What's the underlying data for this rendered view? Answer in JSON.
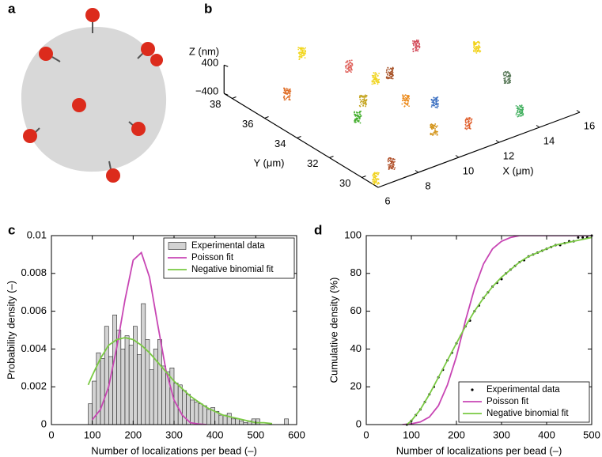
{
  "panel_a": {
    "label": "a"
  },
  "chart_data": [
    {
      "type": "scatter3d",
      "label": "b",
      "xlabel": "X (μm)",
      "ylabel": "Y (μm)",
      "zlabel": "Z (nm)",
      "xlim": [
        6,
        16
      ],
      "ylim": [
        29,
        38.5
      ],
      "zlim": [
        -400,
        400
      ],
      "xticks": [
        6,
        8,
        10,
        12,
        14,
        16
      ],
      "yticks": [
        30,
        32,
        34,
        36,
        38
      ],
      "zticks": [
        400,
        {
          "value": -400,
          "label": "−400"
        }
      ],
      "x": [
        9.7,
        10.5,
        13.6,
        15.4,
        10.7,
        11.4,
        14.8,
        7.2,
        9.2,
        10.5,
        11.3,
        13.5,
        8.2,
        9.9,
        11.3,
        6.9,
        6.2
      ],
      "y": [
        38.3,
        36.4,
        36.1,
        34.6,
        35.0,
        35.0,
        32.0,
        36.1,
        33.9,
        32.9,
        32.1,
        29.6,
        33.0,
        30.4,
        30.0,
        29.3,
        29.4
      ],
      "z": [
        0,
        0,
        0,
        0,
        0,
        0,
        0,
        0,
        0,
        0,
        0,
        0,
        0,
        0,
        0,
        0,
        -300
      ],
      "colors": [
        "#f2d61a",
        "#e0655f",
        "#d4505f",
        "#f2d21a",
        "#f0d420",
        "#a8542a",
        "#5a7a5a",
        "#e0702a",
        "#c4a41e",
        "#ec8c1e",
        "#3f72c2",
        "#43b060",
        "#44ae2e",
        "#d4961e",
        "#e0602e",
        "#b0502a",
        "#f0d21e"
      ]
    },
    {
      "type": "histogram",
      "label": "c",
      "xlabel": "Number of localizations per bead (–)",
      "ylabel": "Probability density (–)",
      "xlim": [
        0,
        600
      ],
      "ylim": [
        0,
        0.01
      ],
      "xticks": [
        0,
        100,
        200,
        300,
        400,
        500,
        600
      ],
      "yticks": [
        0,
        0.002,
        0.004,
        0.006,
        0.008,
        0.01
      ],
      "legend": "upper right",
      "series": [
        {
          "name": "Experimental data",
          "type": "histogram",
          "color": "#d3d3d3",
          "bins": [
            90,
            100,
            110,
            120,
            130,
            140,
            150,
            160,
            170,
            180,
            190,
            200,
            210,
            220,
            230,
            240,
            250,
            260,
            270,
            280,
            290,
            300,
            310,
            320,
            330,
            340,
            350,
            360,
            370,
            380,
            390,
            400,
            410,
            420,
            430,
            440,
            450,
            460,
            470,
            480,
            490,
            500,
            510,
            520,
            530,
            540,
            550,
            560,
            570,
            580
          ],
          "values": [
            0.0011,
            0.0023,
            0.0038,
            0.0035,
            0.0052,
            0.0036,
            0.0058,
            0.005,
            0.004,
            0.0047,
            0.0042,
            0.0052,
            0.0037,
            0.0064,
            0.0045,
            0.0029,
            0.004,
            0.0045,
            0.0031,
            0.0028,
            0.003,
            0.0022,
            0.0021,
            0.0018,
            0.0016,
            0.0013,
            0.0012,
            0.0011,
            0.001,
            0.0008,
            0.0009,
            0.0007,
            0.0005,
            0.0005,
            0.0006,
            0.0003,
            0.0003,
            0.0002,
            0.0001,
            0.0002,
            0.0003,
            0.0003,
            0,
            0,
            0,
            0,
            0,
            0,
            0.0003
          ]
        },
        {
          "name": "Poisson fit",
          "type": "line",
          "color": "#c846b4",
          "x": [
            100,
            120,
            140,
            160,
            180,
            200,
            220,
            240,
            260,
            280,
            300,
            320,
            340,
            360,
            380
          ],
          "values": [
            0.00026,
            0.0008,
            0.002,
            0.0041,
            0.0066,
            0.0087,
            0.0091,
            0.0078,
            0.0053,
            0.0029,
            0.0013,
            0.0005,
            0.0001,
            3e-05,
            0
          ]
        },
        {
          "name": "Negative binomial fit",
          "type": "line",
          "color": "#7ac943",
          "x": [
            90,
            100,
            120,
            140,
            160,
            180,
            200,
            220,
            240,
            260,
            280,
            300,
            320,
            340,
            360,
            380,
            400,
            420,
            440,
            460,
            480,
            500,
            520,
            540
          ],
          "values": [
            0.0021,
            0.0026,
            0.0035,
            0.0042,
            0.0045,
            0.0046,
            0.0045,
            0.0042,
            0.0038,
            0.0033,
            0.0028,
            0.0023,
            0.0019,
            0.0015,
            0.0012,
            0.0009,
            0.0007,
            0.0005,
            0.0004,
            0.0003,
            0.0002,
            0.0001,
            0.0001,
            5e-05
          ]
        }
      ]
    },
    {
      "type": "line",
      "label": "d",
      "xlabel": "Number of localizations per bead (–)",
      "ylabel": "Cumulative density (%)",
      "xlim": [
        0,
        500
      ],
      "ylim": [
        0,
        100
      ],
      "xticks": [
        0,
        100,
        200,
        300,
        400,
        500
      ],
      "yticks": [
        0,
        20,
        40,
        60,
        80,
        100
      ],
      "legend": "lower right",
      "series": [
        {
          "name": "Experimental data",
          "type": "scatter",
          "color": "#000000",
          "x": [
            90,
            100,
            110,
            120,
            130,
            140,
            150,
            160,
            170,
            180,
            190,
            200,
            210,
            220,
            230,
            240,
            250,
            260,
            270,
            280,
            290,
            300,
            310,
            320,
            330,
            340,
            350,
            360,
            370,
            380,
            390,
            400,
            410,
            420,
            430,
            440,
            450,
            460,
            470,
            480,
            490,
            500
          ],
          "values": [
            0,
            2,
            5,
            8,
            12,
            16,
            20,
            25,
            29,
            34,
            38,
            43,
            47,
            52,
            55,
            60,
            63,
            67,
            70,
            73,
            75,
            77,
            80,
            82,
            84,
            86,
            87,
            89,
            90,
            91,
            92,
            93,
            94,
            95,
            95,
            96,
            97,
            97,
            99,
            99,
            99,
            100
          ]
        },
        {
          "name": "Poisson fit",
          "type": "line",
          "color": "#c846b4",
          "x": [
            80,
            100,
            120,
            140,
            160,
            180,
            200,
            220,
            240,
            260,
            280,
            300,
            320,
            340,
            500
          ],
          "values": [
            0,
            0.4,
            1.4,
            4,
            10,
            21,
            36,
            55,
            72,
            85,
            93,
            97,
            99,
            100,
            100
          ]
        },
        {
          "name": "Negative binomial fit",
          "type": "line",
          "color": "#7ac943",
          "x": [
            90,
            100,
            120,
            140,
            160,
            180,
            200,
            220,
            240,
            260,
            280,
            300,
            320,
            340,
            360,
            380,
            400,
            420,
            440,
            460,
            480,
            500
          ],
          "values": [
            0,
            2,
            8,
            16,
            25,
            34,
            43,
            52,
            60,
            67,
            73,
            78,
            82,
            86,
            89,
            91,
            93,
            95,
            96,
            97,
            98,
            99
          ]
        }
      ]
    }
  ]
}
